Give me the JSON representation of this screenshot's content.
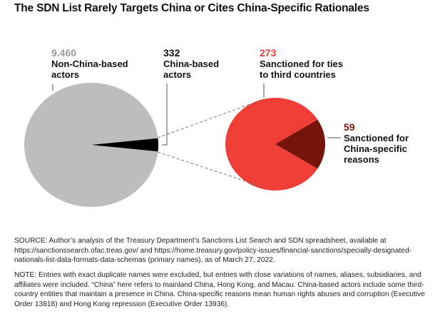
{
  "title": "The SDN List Rarely Targets China or Cites China-Specific Rationales",
  "colors": {
    "non_china": "#bcbdbf",
    "china_based": "#000000",
    "third_countries": "#ee3e36",
    "china_specific": "#76140c",
    "non_china_label": "#9c9c9c",
    "third_label": "#ee3e36",
    "specific_label": "#76140c"
  },
  "chart_data": [
    {
      "type": "pie",
      "title": "SDN list entries by location",
      "slices": [
        {
          "label": "Non-China-based actors",
          "value": 9460,
          "value_label": "9.460",
          "color": "#bcbdbf"
        },
        {
          "label": "China-based actors",
          "value": 332,
          "value_label": "332",
          "color": "#000000"
        }
      ]
    },
    {
      "type": "pie",
      "title": "China-based actors by sanction rationale",
      "slices": [
        {
          "label": "Sanctioned for ties to third countries",
          "value": 273,
          "value_label": "273",
          "color": "#ee3e36"
        },
        {
          "label": "Sanctioned for China-specific reasons",
          "value": 59,
          "value_label": "59",
          "color": "#76140c"
        }
      ]
    }
  ],
  "labels": {
    "non_china": {
      "num": "9.460",
      "line1": "Non-China-based",
      "line2": "actors"
    },
    "china": {
      "num": "332",
      "line1": "China-based",
      "line2": "actors"
    },
    "third": {
      "num": "273",
      "line1": "Sanctioned for ties",
      "line2": "to third countries"
    },
    "specific": {
      "num": "59",
      "line1": "Sanctioned for",
      "line2": "China-specific reasons"
    }
  },
  "footer": {
    "source": "SOURCE: Author’s analysis of the Treasury Department’s Sanctions List Search and SDN spreadsheet, available at https://sanctionssearch.ofac.treas.gov/ and https://home.treasury.gov/policy-issues/financial-sanctions/specially-designated-nationals-list-data-formats-data-schemas (primary names), as of March 27, 2022.",
    "note": "NOTE: Entries with exact duplicate names were excluded, but entries with close variations of names, aliases, subsidiaries, and affiliates were included. “China” here refers to mainland China, Hong Kong, and Macau. China-based actors include some third-country entities that maintain a presence in China. China-specific reasons mean human rights abuses and corruption (Executive Order 13818) and Hong Kong repression (Executive Order 13936)."
  }
}
